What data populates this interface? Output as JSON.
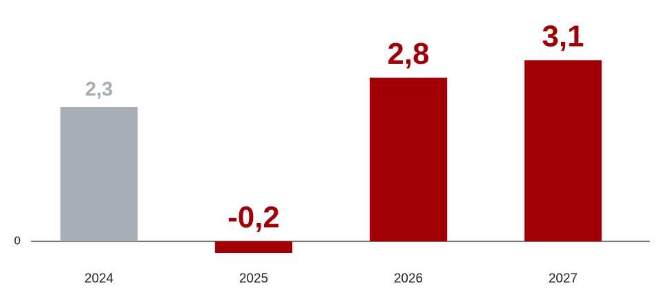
{
  "chart_data": {
    "type": "bar",
    "categories": [
      "2024",
      "2025",
      "2026",
      "2027"
    ],
    "values": [
      2.3,
      -0.2,
      2.8,
      3.1
    ],
    "value_labels": [
      "2,3",
      "-0,2",
      "2,8",
      "3,1"
    ],
    "colors": [
      "#a6adb4",
      "#a00005",
      "#a00005",
      "#a00005"
    ],
    "ylim": [
      -0.5,
      3.5
    ],
    "yticks": [
      0
    ]
  }
}
